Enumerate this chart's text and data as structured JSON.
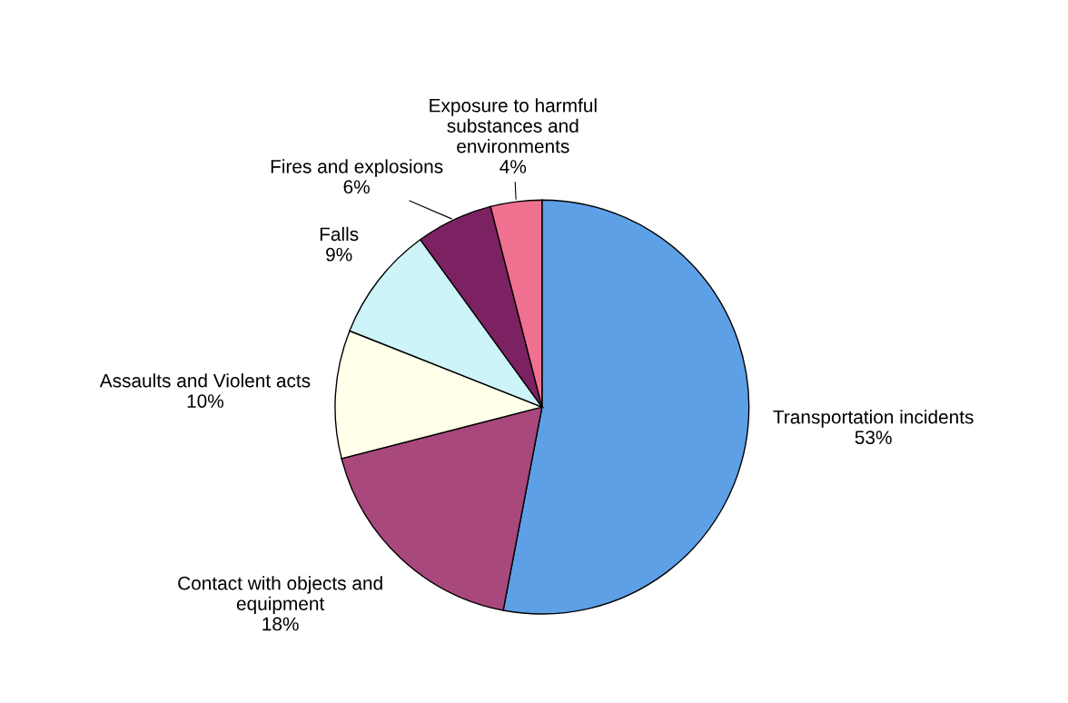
{
  "chart_data": {
    "type": "pie",
    "categories": [
      "Transportation incidents",
      "Contact with objects and\nequipment",
      "Assaults and Violent acts",
      "Falls",
      "Fires and explosions",
      "Exposure to harmful\nsubstances and\nenvironments"
    ],
    "values": [
      53,
      18,
      10,
      9,
      6,
      4
    ],
    "value_labels": [
      "53%",
      "18%",
      "10%",
      "9%",
      "6%",
      "4%"
    ],
    "colors": [
      "#5ea0e6",
      "#a8487c",
      "#ffffea",
      "#cdf4f8",
      "#7c2262",
      "#f0718f"
    ]
  }
}
